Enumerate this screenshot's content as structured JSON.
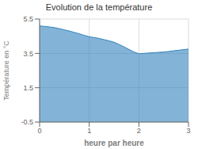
{
  "chart_data": {
    "type": "area",
    "title": "Evolution de la température",
    "xlabel": "heure par heure",
    "ylabel": "Température en °C",
    "x": [
      0.0,
      0.1,
      0.2,
      0.3,
      0.4,
      0.5,
      0.6,
      0.7,
      0.8,
      0.9,
      1.0,
      1.1,
      1.2,
      1.3,
      1.4,
      1.5,
      1.6,
      1.7,
      1.8,
      1.9,
      2.0,
      2.1,
      2.2,
      2.3,
      2.4,
      2.5,
      2.6,
      2.7,
      2.8,
      2.9,
      3.0
    ],
    "values": [
      5.1,
      5.07,
      5.04,
      5.0,
      4.94,
      4.87,
      4.8,
      4.72,
      4.64,
      4.55,
      4.47,
      4.42,
      4.37,
      4.3,
      4.23,
      4.15,
      4.02,
      3.88,
      3.73,
      3.58,
      3.48,
      3.5,
      3.52,
      3.54,
      3.56,
      3.58,
      3.61,
      3.65,
      3.68,
      3.72,
      3.75
    ],
    "xlim": [
      0,
      3
    ],
    "ylim": [
      -0.5,
      5.5
    ],
    "xticks": [
      0,
      1,
      2,
      3
    ],
    "yticks": [
      -0.5,
      1.5,
      3.5,
      5.5
    ],
    "grid": true
  }
}
